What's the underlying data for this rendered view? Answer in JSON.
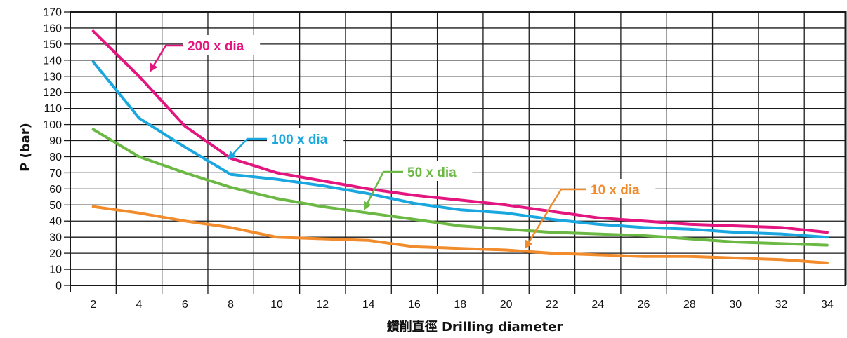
{
  "chart_data": {
    "type": "line",
    "title": "",
    "xlabel": "鑽削直徑 Drilling diameter",
    "ylabel": "P (bar)",
    "xlim": [
      1.0,
      34.8
    ],
    "ylim": [
      0,
      170
    ],
    "xticks": [
      2,
      4,
      6,
      8,
      10,
      12,
      14,
      16,
      18,
      20,
      22,
      24,
      26,
      28,
      30,
      32,
      34
    ],
    "yticks": [
      0,
      10,
      20,
      30,
      40,
      50,
      60,
      70,
      80,
      90,
      100,
      110,
      120,
      130,
      140,
      150,
      160,
      170
    ],
    "grid": true,
    "series": [
      {
        "name": "200 x dia",
        "color": "#e3157f",
        "x": [
          2,
          4,
          6,
          8,
          10,
          12,
          14,
          16,
          18,
          20,
          22,
          24,
          26,
          28,
          30,
          32,
          34
        ],
        "y": [
          158,
          130,
          99,
          79,
          70,
          65,
          60,
          56,
          53,
          50,
          46,
          42,
          40,
          38,
          37,
          36,
          33
        ]
      },
      {
        "name": "100 x dia",
        "color": "#1aa7e0",
        "x": [
          2,
          4,
          6,
          8,
          10,
          12,
          14,
          16,
          18,
          20,
          22,
          24,
          26,
          28,
          30,
          32,
          34
        ],
        "y": [
          139,
          104,
          86,
          69,
          66,
          62,
          57,
          51,
          47,
          45,
          41,
          38,
          36,
          35,
          33,
          32,
          30
        ]
      },
      {
        "name": "50 x dia",
        "color": "#6bb944",
        "x": [
          2,
          4,
          6,
          8,
          10,
          12,
          14,
          16,
          18,
          20,
          22,
          24,
          26,
          28,
          30,
          32,
          34
        ],
        "y": [
          97,
          80,
          70,
          61,
          54,
          49,
          45,
          41,
          37,
          35,
          33,
          32,
          31,
          29,
          27,
          26,
          25
        ]
      },
      {
        "name": "10 x dia",
        "color": "#f18b2b",
        "x": [
          2,
          4,
          6,
          8,
          10,
          12,
          14,
          16,
          18,
          20,
          22,
          24,
          26,
          28,
          30,
          32,
          34
        ],
        "y": [
          49,
          45,
          40,
          36,
          30,
          29,
          28,
          24,
          23,
          22,
          20,
          19,
          18,
          18,
          17,
          16,
          14
        ]
      }
    ]
  }
}
